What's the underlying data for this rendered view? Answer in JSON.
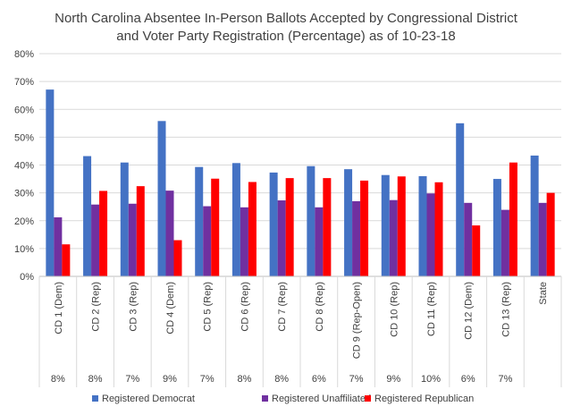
{
  "chart_data": {
    "type": "bar",
    "title": "North Carolina Absentee In-Person Ballots Accepted by Congressional District",
    "subtitle": "and Voter Party Registration (Percentage) as of 10-23-18",
    "xlabel": "",
    "ylabel": "",
    "ylim": [
      0,
      80
    ],
    "yticks": [
      "0%",
      "10%",
      "20%",
      "30%",
      "40%",
      "50%",
      "60%",
      "70%",
      "80%"
    ],
    "grid": true,
    "legend": "bottom",
    "categories": [
      "CD 1 (Dem)",
      "CD 2 (Rep)",
      "CD 3 (Rep)",
      "CD 4 (Dem)",
      "CD 5 (Rep)",
      "CD 6 (Rep)",
      "CD 7 (Rep)",
      "CD 8 (Rep)",
      "CD 9 (Rep-Open)",
      "CD 10 (Rep)",
      "CD 11 (Rep)",
      "CD 12 (Dem)",
      "CD 13 (Rep)",
      "State"
    ],
    "shares": [
      "8%",
      "8%",
      "7%",
      "9%",
      "7%",
      "8%",
      "8%",
      "6%",
      "7%",
      "9%",
      "10%",
      "6%",
      "7%",
      ""
    ],
    "series": [
      {
        "name": "Registered Democrat",
        "color": "#4472c4",
        "values": [
          67.1,
          43.2,
          40.9,
          55.8,
          39.3,
          40.7,
          37.3,
          39.6,
          38.5,
          36.4,
          36.0,
          55.0,
          35.0,
          43.4
        ]
      },
      {
        "name": "Registered Unaffiliated",
        "color": "#7030a0",
        "values": [
          21.2,
          25.8,
          26.1,
          30.8,
          25.2,
          24.8,
          27.3,
          24.8,
          27.0,
          27.4,
          29.8,
          26.4,
          23.9,
          26.4
        ]
      },
      {
        "name": "Registered Republican",
        "color": "#ff0000",
        "values": [
          11.5,
          30.7,
          32.4,
          13.0,
          35.1,
          33.9,
          35.3,
          35.3,
          34.4,
          35.9,
          33.8,
          18.3,
          40.9,
          30.0
        ]
      }
    ]
  }
}
